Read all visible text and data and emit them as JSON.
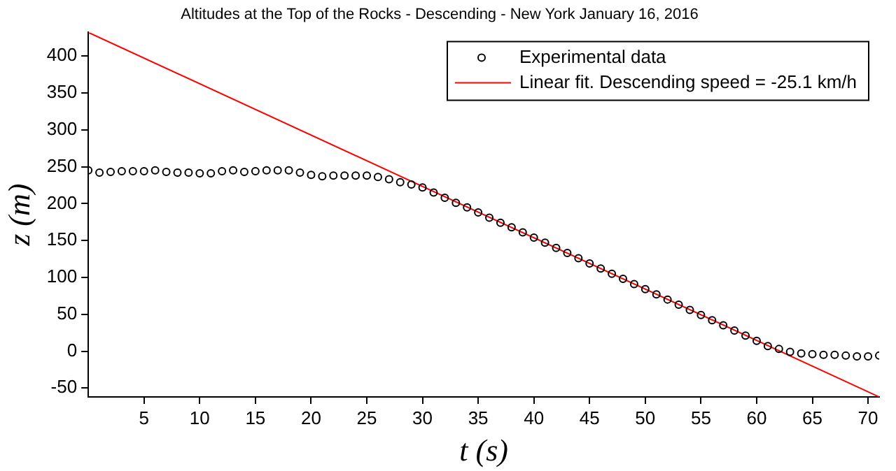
{
  "chart_data": {
    "type": "scatter",
    "title": "Altitudes at the Top of the Rocks - Descending - New York January 16, 2016",
    "xlabel": "t (s)",
    "ylabel": "z (m)",
    "xlim": [
      0,
      71
    ],
    "xticks": [
      5,
      10,
      15,
      20,
      25,
      30,
      35,
      40,
      45,
      50,
      55,
      60,
      65,
      70
    ],
    "ylim": [
      -62,
      432
    ],
    "yticks": [
      -50,
      0,
      50,
      100,
      150,
      200,
      250,
      300,
      350,
      400
    ],
    "grid": false,
    "legend": "top right",
    "marker": "circle",
    "series": [
      {
        "name": "Experimental data",
        "color": "#000000",
        "x": [
          0,
          1,
          2,
          3,
          4,
          5,
          6,
          7,
          8,
          9,
          10,
          11,
          12,
          13,
          14,
          15,
          16,
          17,
          18,
          19,
          20,
          21,
          22,
          23,
          24,
          25,
          26,
          27,
          28,
          29,
          30,
          31,
          32,
          33,
          34,
          35,
          36,
          37,
          38,
          39,
          40,
          41,
          42,
          43,
          44,
          45,
          46,
          47,
          48,
          49,
          50,
          51,
          52,
          53,
          54,
          55,
          56,
          57,
          58,
          59,
          60,
          61,
          62,
          63,
          64,
          65,
          66,
          67,
          68,
          69,
          70,
          71
        ],
        "values": [
          245,
          242,
          243,
          244,
          244,
          244,
          245,
          243,
          242,
          242,
          241,
          241,
          244,
          245,
          243,
          244,
          245,
          245,
          245,
          242,
          239,
          237,
          238,
          238,
          238,
          238,
          236,
          233,
          229,
          226,
          222,
          215,
          208,
          201,
          195,
          188,
          181,
          174,
          168,
          161,
          154,
          147,
          140,
          133,
          126,
          119,
          112,
          105,
          98,
          91,
          84,
          77,
          70,
          63,
          56,
          49,
          42,
          35,
          28,
          21,
          14,
          7,
          3,
          -1,
          -3,
          -4,
          -5,
          -5,
          -6,
          -7,
          -7,
          -6
        ]
      },
      {
        "name": "Linear fit. Descending speed = -25.1 km/h",
        "type": "line",
        "color": "#ff0000",
        "line_style": "solid",
        "marker": "none",
        "x": [
          0,
          71
        ],
        "values": [
          432,
          -62
        ]
      }
    ]
  }
}
